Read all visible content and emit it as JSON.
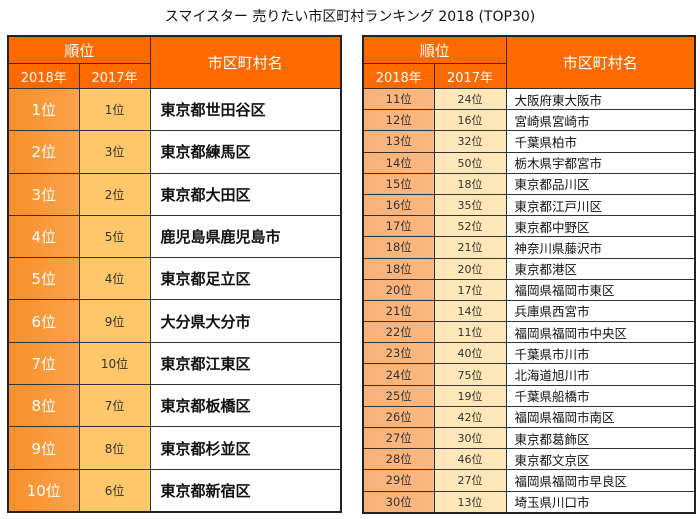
{
  "title": "スマイスター 売りたい市区町村ランキング 2018 (TOP30)",
  "header": {
    "rank_label": "順位",
    "year_2018": "2018年",
    "year_2017": "2017年",
    "name_label": "市区町村名"
  },
  "colors": {
    "header_bg": "#ff6a00",
    "col2018_left": "#f7902a",
    "col2017_left": "#fdc76a",
    "col2018_right": "#f8b27a",
    "col2017_right": "#fde7b8"
  },
  "left_rows": [
    {
      "r2018": "1位",
      "r2017": "1位",
      "name": "東京都世田谷区"
    },
    {
      "r2018": "2位",
      "r2017": "3位",
      "name": "東京都練馬区"
    },
    {
      "r2018": "3位",
      "r2017": "2位",
      "name": "東京都大田区"
    },
    {
      "r2018": "4位",
      "r2017": "5位",
      "name": "鹿児島県鹿児島市"
    },
    {
      "r2018": "5位",
      "r2017": "4位",
      "name": "東京都足立区"
    },
    {
      "r2018": "6位",
      "r2017": "9位",
      "name": "大分県大分市"
    },
    {
      "r2018": "7位",
      "r2017": "10位",
      "name": "東京都江東区"
    },
    {
      "r2018": "8位",
      "r2017": "7位",
      "name": "東京都板橋区"
    },
    {
      "r2018": "9位",
      "r2017": "8位",
      "name": "東京都杉並区"
    },
    {
      "r2018": "10位",
      "r2017": "6位",
      "name": "東京都新宿区"
    }
  ],
  "right_rows": [
    {
      "r2018": "11位",
      "r2017": "24位",
      "name": "大阪府東大阪市"
    },
    {
      "r2018": "12位",
      "r2017": "16位",
      "name": "宮崎県宮崎市"
    },
    {
      "r2018": "13位",
      "r2017": "32位",
      "name": "千葉県柏市"
    },
    {
      "r2018": "14位",
      "r2017": "50位",
      "name": "栃木県宇都宮市"
    },
    {
      "r2018": "15位",
      "r2017": "18位",
      "name": "東京都品川区"
    },
    {
      "r2018": "16位",
      "r2017": "35位",
      "name": "東京都江戸川区"
    },
    {
      "r2018": "17位",
      "r2017": "52位",
      "name": "東京都中野区"
    },
    {
      "r2018": "18位",
      "r2017": "21位",
      "name": "神奈川県藤沢市"
    },
    {
      "r2018": "18位",
      "r2017": "20位",
      "name": "東京都港区"
    },
    {
      "r2018": "20位",
      "r2017": "17位",
      "name": "福岡県福岡市東区"
    },
    {
      "r2018": "21位",
      "r2017": "14位",
      "name": "兵庫県西宮市"
    },
    {
      "r2018": "22位",
      "r2017": "11位",
      "name": "福岡県福岡市中央区"
    },
    {
      "r2018": "23位",
      "r2017": "40位",
      "name": "千葉県市川市"
    },
    {
      "r2018": "24位",
      "r2017": "75位",
      "name": "北海道旭川市"
    },
    {
      "r2018": "25位",
      "r2017": "19位",
      "name": "千葉県船橋市"
    },
    {
      "r2018": "26位",
      "r2017": "42位",
      "name": "福岡県福岡市南区"
    },
    {
      "r2018": "27位",
      "r2017": "30位",
      "name": "東京都葛飾区"
    },
    {
      "r2018": "28位",
      "r2017": "46位",
      "name": "東京都文京区"
    },
    {
      "r2018": "29位",
      "r2017": "27位",
      "name": "福岡県福岡市早良区"
    },
    {
      "r2018": "30位",
      "r2017": "13位",
      "name": "埼玉県川口市"
    }
  ]
}
